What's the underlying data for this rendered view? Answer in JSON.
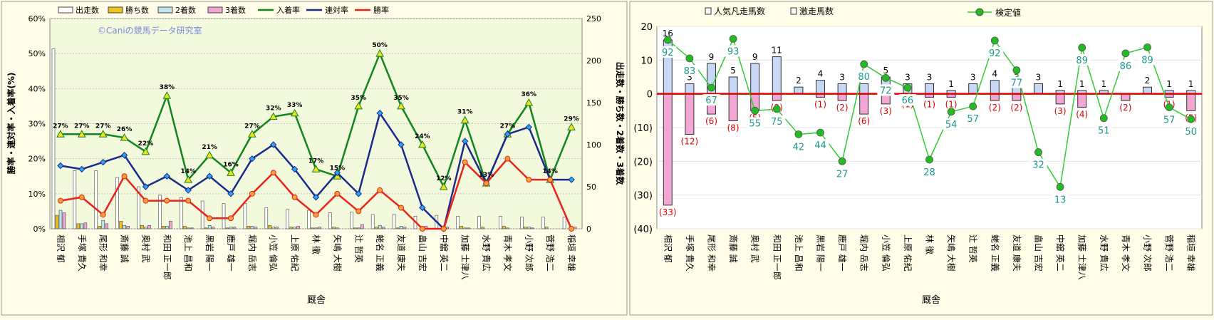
{
  "chart_data": [
    {
      "type": "bar+line",
      "watermark": "©Caniの競馬データ研究室",
      "xlabel": "厩舎",
      "ylabel_left": "勝率・連対率・入着率(%)",
      "ylabel_right": "出走数・勝ち数・2着数・3着数",
      "ylim_left": [
        0,
        60
      ],
      "ylim_right": [
        0,
        250
      ],
      "yticks_left": [
        "0%",
        "10%",
        "20%",
        "30%",
        "40%",
        "50%",
        "60%"
      ],
      "yticks_right": [
        "0",
        "50",
        "100",
        "150",
        "200",
        "250"
      ],
      "categories": [
        "相沢 郁",
        "手塚 貴久",
        "尾形 和幸",
        "斎藤 誠",
        "奥村 武",
        "和田 正一郎",
        "池上 昌和",
        "黒岩 陽一",
        "鹿戸 雄一",
        "堀内 岳志",
        "小笠 倫弘",
        "上原 佑紀",
        "林 徹",
        "矢嶋 大樹",
        "辻 哲英",
        "蛯名 正義",
        "友道 康夫",
        "畠山 吉宏",
        "中舘 英二",
        "加藤 士津八",
        "水野 貴広",
        "青木 孝文",
        "小野 次郎",
        "菅野 浩二",
        "稲垣 幸雄"
      ],
      "series": [
        {
          "name": "出走数",
          "axis": "right",
          "color": "#ffffff",
          "values": [
            214,
            69,
            69,
            61,
            50,
            40,
            37,
            33,
            30,
            30,
            25,
            23,
            22,
            19,
            20,
            17,
            17,
            15,
            16,
            15,
            15,
            15,
            14,
            14,
            14
          ]
        },
        {
          "name": "勝ち数",
          "axis": "right",
          "color": "#f0c419",
          "values": [
            16,
            6,
            3,
            9,
            4,
            3,
            3,
            1,
            1,
            3,
            4,
            2,
            1,
            2,
            1,
            2,
            1,
            0,
            0,
            3,
            2,
            3,
            2,
            2,
            0
          ]
        },
        {
          "name": "2着数",
          "axis": "right",
          "color": "#bfe6f0",
          "values": [
            22,
            6,
            10,
            4,
            2,
            3,
            1,
            4,
            2,
            3,
            2,
            2,
            1,
            1,
            1,
            4,
            3,
            1,
            0,
            1,
            0,
            1,
            2,
            0,
            2
          ]
        },
        {
          "name": "3着数",
          "axis": "right",
          "color": "#f2a6d4",
          "values": [
            19,
            7,
            6,
            3,
            4,
            9,
            1,
            2,
            2,
            2,
            2,
            3,
            2,
            0,
            5,
            2,
            2,
            3,
            2,
            1,
            0,
            0,
            1,
            0,
            2
          ]
        },
        {
          "name": "入着率",
          "axis": "left",
          "color": "#12851e",
          "values": [
            27,
            27,
            27,
            26,
            22,
            38,
            14,
            21,
            16,
            27,
            32,
            33,
            17,
            15,
            35,
            50,
            35,
            24,
            12,
            31,
            13,
            27,
            36,
            14,
            29
          ]
        },
        {
          "name": "連対率",
          "axis": "left",
          "color": "#1c2a8c",
          "values": [
            18,
            17,
            19,
            21,
            12,
            15,
            11,
            15,
            10,
            20,
            24,
            17,
            9,
            16,
            10,
            33,
            24,
            6,
            0,
            25,
            13,
            27,
            29,
            14,
            14
          ]
        },
        {
          "name": "勝率",
          "axis": "left",
          "color": "#e8231b",
          "values": [
            8,
            9,
            4,
            15,
            8,
            8,
            8,
            3,
            3,
            10,
            16,
            9,
            4,
            10,
            5,
            11,
            6,
            0,
            0,
            19,
            13,
            20,
            14,
            14,
            0
          ]
        }
      ],
      "labeled_rate_label": [
        "27%",
        "27%",
        "27%",
        "26%",
        "22%",
        "38%",
        "14%",
        "21%",
        "16%",
        "27%",
        "32%",
        "33%",
        "17%",
        "15%",
        "35%",
        "50%",
        "35%",
        "24%",
        "12%",
        "31%",
        "13%",
        "27%",
        "36%",
        "14%",
        "29%"
      ],
      "legend_position": "top"
    },
    {
      "type": "bar+line",
      "xlabel": "厩舎",
      "ylim": [
        -40,
        20
      ],
      "yticks": [
        "20",
        "10",
        "0",
        "(10)",
        "(20)",
        "(30)",
        "(40)"
      ],
      "categories": [
        "相沢 郁",
        "手塚 貴久",
        "尾形 和幸",
        "斎藤 誠",
        "奥村 武",
        "和田 正一郎",
        "池上 昌和",
        "黒岩 陽一",
        "鹿戸 雄一",
        "堀内 岳志",
        "小笠 倫弘",
        "上原 佑紀",
        "林 徹",
        "矢嶋 大樹",
        "辻 哲英",
        "蛯名 正義",
        "友道 康夫",
        "畠山 吉宏",
        "中舘 英二",
        "加藤 士津八",
        "水野 貴広",
        "青木 孝文",
        "小野 次郎",
        "菅野 浩二",
        "稲垣 幸雄"
      ],
      "series": [
        {
          "name": "人気凡走馬数",
          "color": "#f2a6d4",
          "values": [
            -33,
            -12,
            -6,
            -8,
            -5,
            -2,
            0,
            -1,
            -2,
            -6,
            -3,
            -1,
            -1,
            -1,
            0,
            -2,
            -2,
            0,
            -3,
            -4,
            0,
            -2,
            0,
            -1,
            -5
          ]
        },
        {
          "name": "激走馬数",
          "color": "#c6d8f5",
          "values": [
            16,
            3,
            9,
            5,
            9,
            11,
            2,
            4,
            3,
            3,
            5,
            3,
            3,
            1,
            3,
            4,
            3,
            3,
            1,
            1,
            1,
            0,
            2,
            1,
            1
          ]
        },
        {
          "name": "検定値",
          "color": "#33cc33",
          "values": [
            16,
            10.5,
            1.8,
            16.3,
            -5,
            -4.5,
            -12,
            -11.5,
            -20,
            8.8,
            4.7,
            1.8,
            -19.5,
            -5.3,
            -3.7,
            15.8,
            7,
            -17.3,
            -27.6,
            13.7,
            -7.2,
            12,
            13.8,
            -4,
            -7.5
          ]
        }
      ],
      "count_labels_positive": [
        "16",
        "3",
        "9",
        "5",
        "9",
        "11",
        "2",
        "4",
        "3",
        "3",
        "5",
        "3",
        "3",
        "1",
        "3",
        "4",
        "3",
        "3",
        "1",
        "1",
        "1",
        "",
        "2",
        "1",
        "1"
      ],
      "count_labels_negative": [
        "(33)",
        "(12)",
        "(6)",
        "(8)",
        "(5)",
        "(2)",
        "",
        "(1)",
        "(2)",
        "(6)",
        "(3)",
        "(1)",
        "(1)",
        "(1)",
        "",
        "(2)",
        "(2)",
        "",
        "(3)",
        "(4)",
        "",
        "(2)",
        "",
        "(1)",
        "(5)"
      ],
      "test_labels": [
        "92",
        "83",
        "67",
        "93",
        "55",
        "75",
        "42",
        "44",
        "27",
        "80",
        "72",
        "66",
        "28",
        "54",
        "57",
        "92",
        "77",
        "32",
        "13",
        "89",
        "51",
        "86",
        "89",
        "57",
        "50"
      ],
      "legend_position": "top"
    }
  ]
}
